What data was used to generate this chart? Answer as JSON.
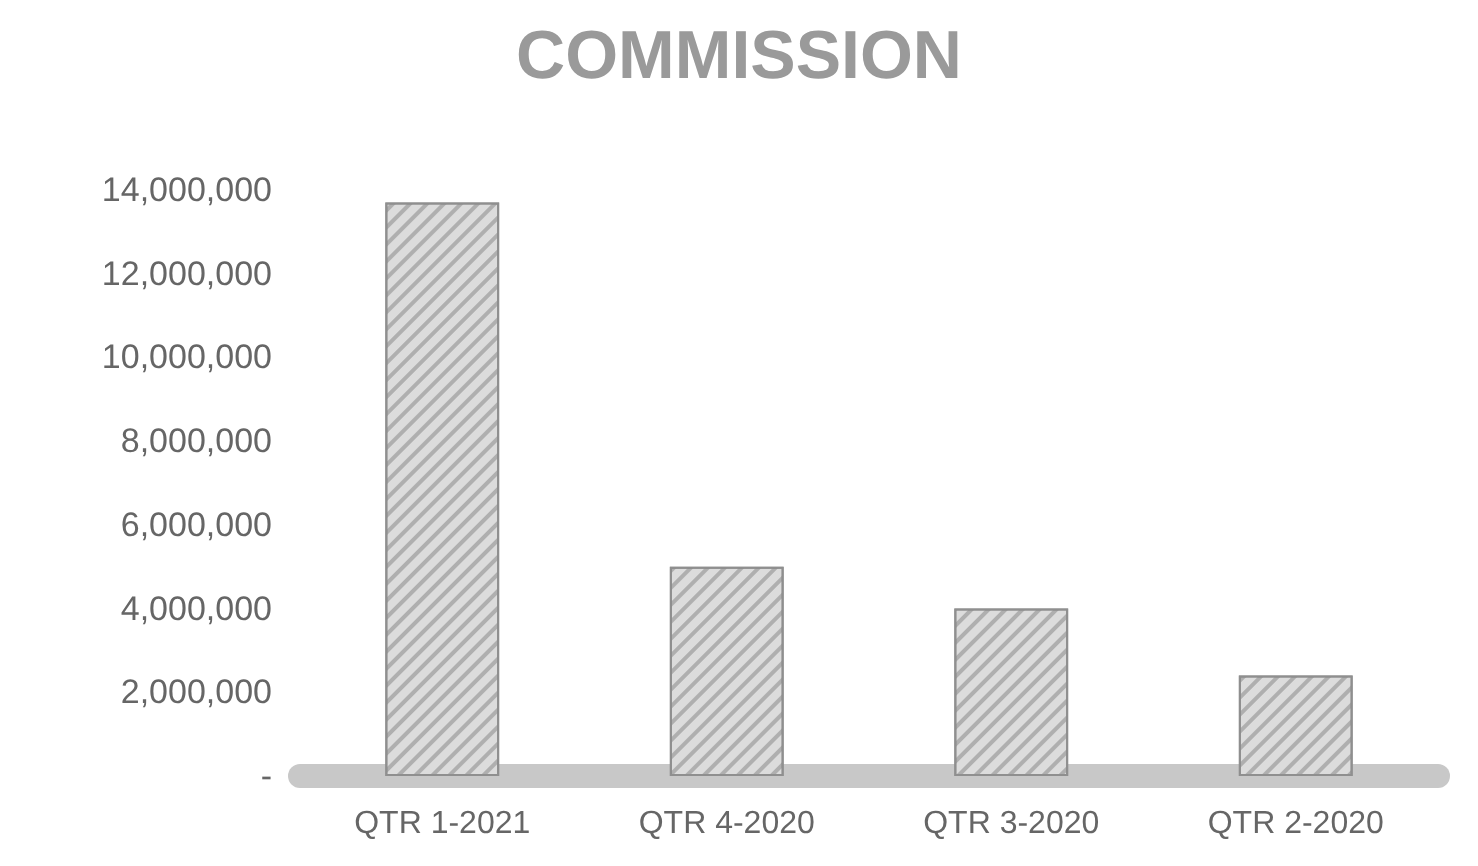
{
  "chart_data": {
    "type": "bar",
    "title": "COMMISSION",
    "categories": [
      "QTR 1-2021",
      "QTR 4-2020",
      "QTR 3-2020",
      "QTR 2-2020"
    ],
    "values": [
      13700000,
      5000000,
      4000000,
      2400000
    ],
    "color": "#dcdcdc",
    "ylim": [
      0,
      14000000
    ],
    "yticks": [
      {
        "value": 0,
        "label": "-"
      },
      {
        "value": 2000000,
        "label": "2,000,000"
      },
      {
        "value": 4000000,
        "label": "4,000,000"
      },
      {
        "value": 6000000,
        "label": "6,000,000"
      },
      {
        "value": 8000000,
        "label": "8,000,000"
      },
      {
        "value": 10000000,
        "label": "10,000,000"
      },
      {
        "value": 12000000,
        "label": "12,000,000"
      },
      {
        "value": 14000000,
        "label": "14,000,000"
      }
    ],
    "grid": false
  }
}
